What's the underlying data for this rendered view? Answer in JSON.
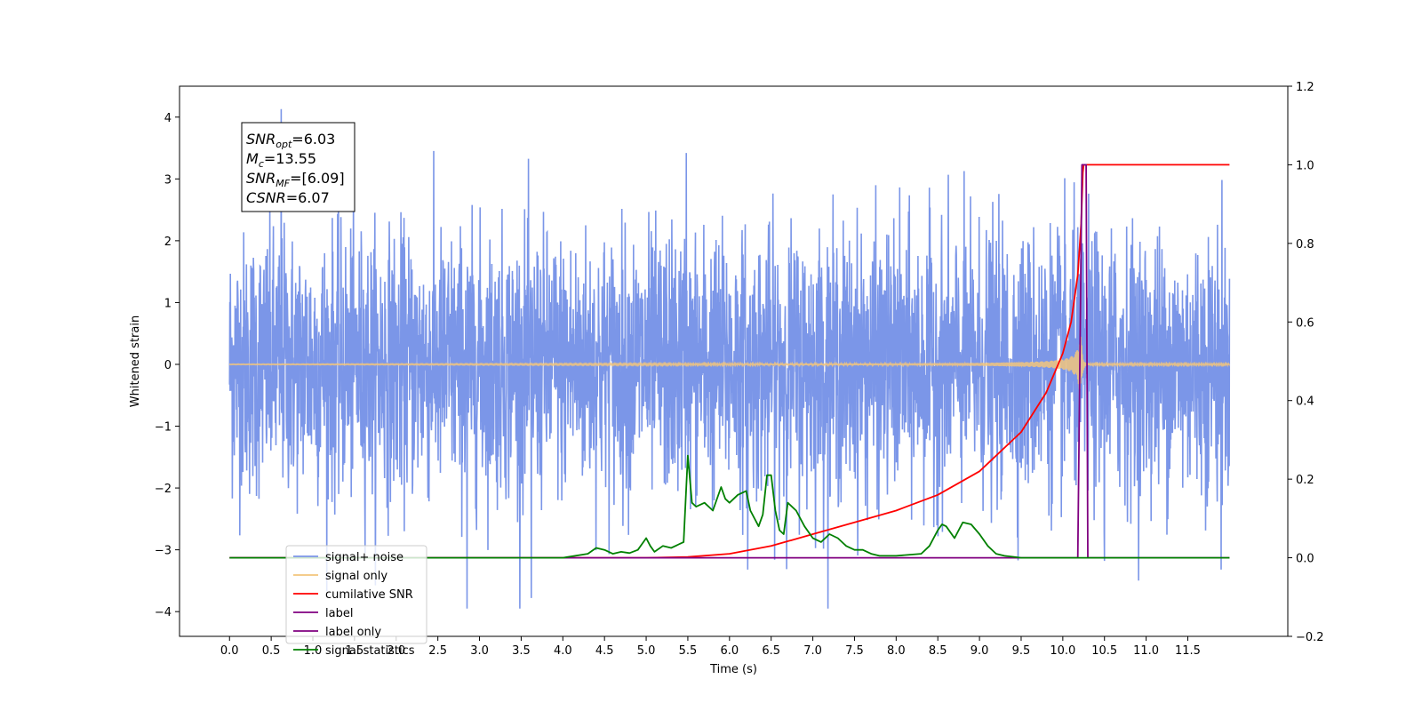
{
  "chart_data": {
    "type": "line",
    "title": "",
    "xlabel": "Time (s)",
    "ylabel": "Whitened strain",
    "y2label": "",
    "xlim": [
      -0.6,
      12.7
    ],
    "ylim": [
      -4.4,
      4.5
    ],
    "y2lim": [
      -0.2,
      1.2
    ],
    "x_ticks": [
      0.0,
      0.5,
      1.0,
      1.5,
      2.0,
      2.5,
      3.0,
      3.5,
      4.0,
      4.5,
      5.0,
      5.5,
      6.0,
      6.5,
      7.0,
      7.5,
      8.0,
      8.5,
      9.0,
      9.5,
      10.0,
      10.5,
      11.0,
      11.5
    ],
    "x_tick_labels": [
      "0.0",
      "0.5",
      "1.0",
      "1.5",
      "2.0",
      "2.5",
      "3.0",
      "3.5",
      "4.0",
      "4.5",
      "5.0",
      "5.5",
      "6.0",
      "6.5",
      "7.0",
      "7.5",
      "8.0",
      "8.5",
      "9.0",
      "9.5",
      "10.0",
      "10.5",
      "11.0",
      "11.5"
    ],
    "y_ticks": [
      -4,
      -3,
      -2,
      -1,
      0,
      1,
      2,
      3,
      4
    ],
    "y_tick_labels": [
      "−4",
      "−3",
      "−2",
      "−1",
      "0",
      "1",
      "2",
      "3",
      "4"
    ],
    "y2_ticks": [
      -0.2,
      0.0,
      0.2,
      0.4,
      0.6,
      0.8,
      1.0,
      1.2
    ],
    "y2_tick_labels": [
      "−0.2",
      "0.0",
      "0.2",
      "0.4",
      "0.6",
      "0.8",
      "1.0",
      "1.2"
    ],
    "grid": false,
    "legend_position": "lower-left",
    "annotation": {
      "lines": [
        {
          "base": "SNR",
          "sub": "opt",
          "rest": "=6.03"
        },
        {
          "base": "M",
          "sub": "c",
          "rest": "=13.55"
        },
        {
          "base": "SNR",
          "sub": "MF",
          "rest": "=[6.09]"
        },
        {
          "base": "CSNR",
          "sub": "",
          "rest": "=6.07"
        }
      ]
    },
    "series": [
      {
        "name": "signal+ noise",
        "color": "#7b96e8",
        "axis": "left",
        "kind": "noise",
        "x_range": [
          0.0,
          12.0
        ],
        "typical_amplitude": 1.7,
        "max": 4.13,
        "min": -3.95,
        "spikes": [
          [
            0.62,
            4.13
          ],
          [
            2.85,
            -3.95
          ],
          [
            3.62,
            -3.78
          ],
          [
            5.48,
            3.42
          ],
          [
            11.9,
            -3.32
          ],
          [
            6.22,
            -3.32
          ],
          [
            10.5,
            -3.18
          ]
        ]
      },
      {
        "name": "signal only",
        "color": "#f2c57c",
        "axis": "left",
        "kind": "chirp",
        "x_range": [
          0.0,
          12.0
        ],
        "peak_time": 10.22,
        "peak_amplitude": 0.45
      },
      {
        "name": "cumilative SNR",
        "color": "#ff0000",
        "axis": "right",
        "x": [
          0.0,
          5.0,
          5.5,
          6.0,
          6.5,
          7.0,
          7.5,
          8.0,
          8.5,
          9.0,
          9.5,
          9.8,
          10.0,
          10.1,
          10.18,
          10.22,
          10.24,
          10.25,
          12.0
        ],
        "values": [
          0.0,
          0.0,
          0.002,
          0.01,
          0.03,
          0.06,
          0.09,
          0.12,
          0.16,
          0.22,
          0.32,
          0.42,
          0.52,
          0.6,
          0.72,
          0.85,
          0.98,
          1.0,
          1.0
        ]
      },
      {
        "name": "label",
        "color": "#800080",
        "axis": "right",
        "x": [
          0.0,
          10.18,
          10.23,
          10.28,
          10.3,
          12.0
        ],
        "values": [
          0.0,
          0.0,
          1.0,
          1.0,
          0.0,
          0.0
        ]
      },
      {
        "name": "label only",
        "color": "#800080",
        "axis": "right",
        "x": [],
        "values": []
      },
      {
        "name": "signal statistics",
        "color": "#008000",
        "axis": "right",
        "x": [
          0.0,
          4.0,
          4.3,
          4.4,
          4.5,
          4.6,
          4.7,
          4.8,
          4.9,
          5.0,
          5.05,
          5.1,
          5.2,
          5.3,
          5.4,
          5.45,
          5.5,
          5.55,
          5.6,
          5.7,
          5.8,
          5.9,
          5.95,
          6.0,
          6.1,
          6.2,
          6.25,
          6.35,
          6.4,
          6.45,
          6.5,
          6.55,
          6.6,
          6.65,
          6.7,
          6.8,
          6.9,
          7.0,
          7.1,
          7.2,
          7.3,
          7.4,
          7.5,
          7.6,
          7.7,
          7.8,
          8.0,
          8.3,
          8.4,
          8.5,
          8.55,
          8.6,
          8.7,
          8.8,
          8.9,
          9.0,
          9.1,
          9.2,
          9.3,
          9.5,
          10.0,
          12.0
        ],
        "values": [
          0.0,
          0.0,
          0.01,
          0.025,
          0.02,
          0.01,
          0.015,
          0.012,
          0.02,
          0.05,
          0.03,
          0.015,
          0.03,
          0.025,
          0.035,
          0.04,
          0.26,
          0.14,
          0.13,
          0.14,
          0.12,
          0.18,
          0.15,
          0.14,
          0.16,
          0.17,
          0.12,
          0.08,
          0.11,
          0.21,
          0.21,
          0.12,
          0.07,
          0.06,
          0.14,
          0.12,
          0.08,
          0.05,
          0.04,
          0.06,
          0.05,
          0.03,
          0.02,
          0.02,
          0.01,
          0.005,
          0.005,
          0.01,
          0.03,
          0.07,
          0.085,
          0.08,
          0.05,
          0.09,
          0.085,
          0.06,
          0.03,
          0.01,
          0.005,
          0.0,
          0.0,
          0.0
        ]
      }
    ]
  }
}
